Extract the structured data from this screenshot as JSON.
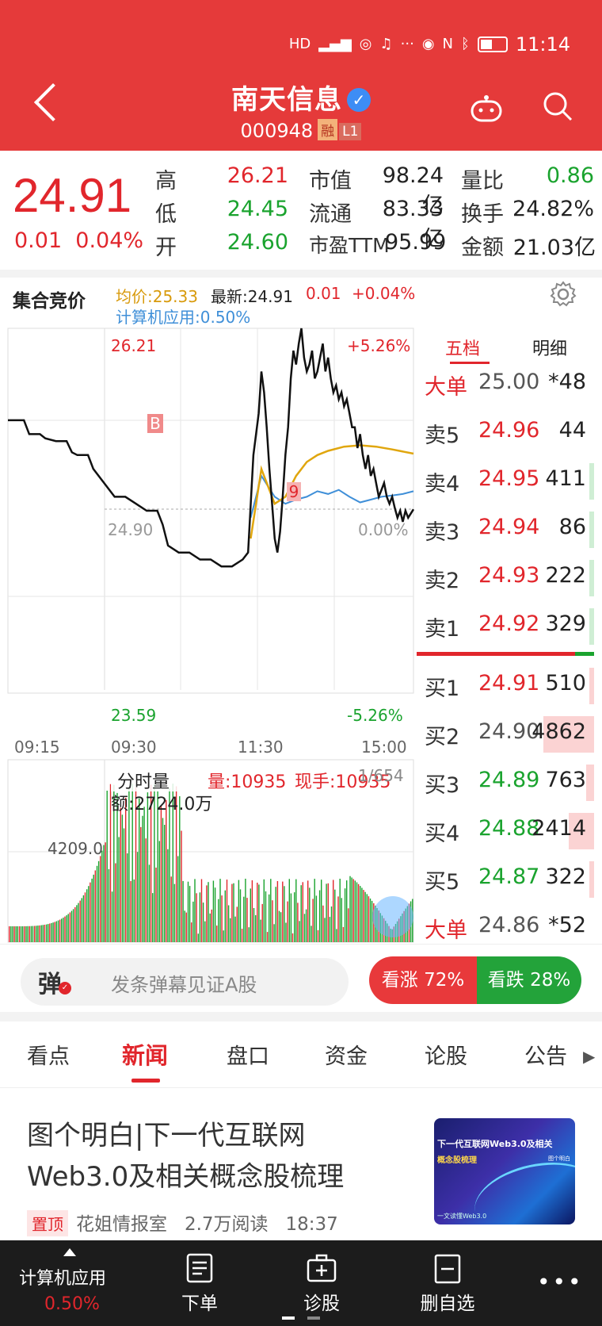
{
  "status_bar": {
    "time": "11:14"
  },
  "header": {
    "stock_name": "南天信息",
    "stock_code": "000948",
    "tag_margin": "融",
    "tag_level": "L1"
  },
  "quote": {
    "price": "24.91",
    "change": "0.01",
    "change_pct": "0.04%",
    "high_label": "高",
    "high": "26.21",
    "low_label": "低",
    "low": "24.45",
    "open_label": "开",
    "open": "24.60",
    "mktcap_label": "市值",
    "mktcap": "98.24亿",
    "float_label": "流通",
    "float": "83.33亿",
    "pe_label": "市盈TTM",
    "pe": "95.99",
    "vol_ratio_label": "量比",
    "vol_ratio": "0.86",
    "turnover_label": "换手",
    "turnover": "24.82%",
    "amount_label": "金额",
    "amount": "21.03亿"
  },
  "chart_head": {
    "mode": "集合竞价",
    "avg_price": "均价:25.33",
    "latest": "最新:24.91",
    "chg": "0.01",
    "chg_pct": "+0.04%",
    "sector": "计算机应用:0.50%"
  },
  "chart_labels": {
    "top_price": "26.21",
    "top_pct": "+5.26%",
    "mid_price": "24.90",
    "mid_pct": "0.00%",
    "bottom_price": "23.59",
    "bottom_pct": "-5.26%",
    "time_0": "09:15",
    "time_1": "09:30",
    "time_2": "11:30",
    "time_3": "15:00",
    "marker_b": "B",
    "marker_9": "9"
  },
  "chart_data": {
    "type": "line",
    "ylim": [
      23.59,
      26.21
    ],
    "series": [],
    "price": [
      [
        0,
        25.55
      ],
      [
        6,
        25.55
      ],
      [
        8,
        25.45
      ],
      [
        12,
        25.45
      ],
      [
        14,
        25.42
      ],
      [
        18,
        25.4
      ],
      [
        22,
        25.4
      ],
      [
        24,
        25.32
      ],
      [
        26,
        25.3
      ],
      [
        30,
        25.3
      ],
      [
        32,
        25.2
      ],
      [
        36,
        25.1
      ],
      [
        40,
        25.0
      ],
      [
        44,
        25.0
      ],
      [
        48,
        24.95
      ],
      [
        52,
        24.9
      ],
      [
        56,
        24.9
      ],
      [
        58,
        24.8
      ],
      [
        60,
        24.65
      ],
      [
        64,
        24.6
      ],
      [
        68,
        24.6
      ],
      [
        72,
        24.55
      ],
      [
        76,
        24.55
      ],
      [
        80,
        24.5
      ],
      [
        84,
        24.5
      ],
      [
        88,
        24.55
      ],
      [
        90,
        24.6
      ],
      [
        92,
        25.3
      ],
      [
        94,
        25.6
      ],
      [
        95,
        25.9
      ],
      [
        96,
        25.75
      ],
      [
        97,
        25.5
      ],
      [
        98,
        25.2
      ],
      [
        99,
        24.95
      ],
      [
        100,
        24.7
      ],
      [
        101,
        24.6
      ],
      [
        102,
        24.75
      ],
      [
        103,
        25.0
      ],
      [
        104,
        25.3
      ],
      [
        105,
        25.5
      ],
      [
        106,
        25.85
      ],
      [
        107,
        26.05
      ],
      [
        108,
        25.95
      ],
      [
        109,
        26.1
      ],
      [
        110,
        26.21
      ],
      [
        111,
        26.0
      ],
      [
        112,
        25.9
      ],
      [
        113,
        25.95
      ],
      [
        114,
        26.05
      ],
      [
        115,
        25.85
      ],
      [
        116,
        25.9
      ],
      [
        117,
        26.0
      ],
      [
        118,
        26.1
      ],
      [
        119,
        25.9
      ],
      [
        120,
        26.0
      ],
      [
        121,
        25.85
      ],
      [
        122,
        25.75
      ],
      [
        123,
        25.8
      ],
      [
        124,
        25.7
      ],
      [
        125,
        25.75
      ],
      [
        126,
        25.65
      ],
      [
        127,
        25.7
      ],
      [
        128,
        25.6
      ],
      [
        129,
        25.5
      ],
      [
        130,
        25.5
      ],
      [
        131,
        25.35
      ],
      [
        132,
        25.45
      ],
      [
        133,
        25.3
      ],
      [
        134,
        25.2
      ],
      [
        135,
        25.3
      ],
      [
        136,
        25.15
      ],
      [
        137,
        25.2
      ],
      [
        138,
        25.1
      ],
      [
        139,
        25.0
      ],
      [
        140,
        25.05
      ],
      [
        141,
        25.1
      ],
      [
        142,
        25.0
      ],
      [
        143,
        24.95
      ],
      [
        144,
        25.0
      ],
      [
        145,
        24.92
      ],
      [
        146,
        24.85
      ],
      [
        147,
        24.9
      ],
      [
        148,
        24.82
      ],
      [
        149,
        24.9
      ],
      [
        150,
        24.85
      ],
      [
        152,
        24.91
      ]
    ],
    "avg": [
      [
        91,
        24.7
      ],
      [
        95,
        25.2
      ],
      [
        100,
        24.95
      ],
      [
        104,
        25.0
      ],
      [
        108,
        25.15
      ],
      [
        112,
        25.25
      ],
      [
        116,
        25.3
      ],
      [
        120,
        25.33
      ],
      [
        126,
        25.36
      ],
      [
        132,
        25.37
      ],
      [
        138,
        25.36
      ],
      [
        144,
        25.34
      ],
      [
        152,
        25.31
      ]
    ],
    "sector": [
      [
        91,
        24.85
      ],
      [
        95,
        25.15
      ],
      [
        100,
        25.0
      ],
      [
        104,
        24.95
      ],
      [
        108,
        24.98
      ],
      [
        112,
        25.0
      ],
      [
        116,
        25.04
      ],
      [
        120,
        25.02
      ],
      [
        124,
        25.05
      ],
      [
        128,
        25.0
      ],
      [
        132,
        24.96
      ],
      [
        136,
        24.98
      ],
      [
        140,
        25.0
      ],
      [
        144,
        25.01
      ],
      [
        148,
        25.02
      ],
      [
        152,
        25.04
      ]
    ]
  },
  "order_book": {
    "tab_active": "五档",
    "tab_other": "明细",
    "asks": [
      {
        "name": "大单",
        "price": "25.00",
        "vol": "*48",
        "price_color": "gray",
        "bar": 0
      },
      {
        "name": "卖5",
        "price": "24.96",
        "vol": "44",
        "price_color": "red",
        "bar": 0
      },
      {
        "name": "卖4",
        "price": "24.95",
        "vol": "411",
        "price_color": "red",
        "bar": 0.08
      },
      {
        "name": "卖3",
        "price": "24.94",
        "vol": "86",
        "price_color": "red",
        "bar": 0.02
      },
      {
        "name": "卖2",
        "price": "24.93",
        "vol": "222",
        "price_color": "red",
        "bar": 0.04
      },
      {
        "name": "卖1",
        "price": "24.92",
        "vol": "329",
        "price_color": "red",
        "bar": 0.06
      }
    ],
    "bids": [
      {
        "name": "买1",
        "price": "24.91",
        "vol": "510",
        "price_color": "red",
        "bar": 0.1
      },
      {
        "name": "买2",
        "price": "24.90",
        "vol": "4862",
        "price_color": "gray",
        "bar": 1.0
      },
      {
        "name": "买3",
        "price": "24.89",
        "vol": "763",
        "price_color": "green",
        "bar": 0.15
      },
      {
        "name": "买4",
        "price": "24.88",
        "vol": "2414",
        "price_color": "green",
        "bar": 0.5
      },
      {
        "name": "买5",
        "price": "24.87",
        "vol": "322",
        "price_color": "green",
        "bar": 0.07
      },
      {
        "name": "大单",
        "price": "24.86",
        "vol": "*52",
        "price_color": "gray",
        "bar": 0
      }
    ]
  },
  "volume": {
    "type": "分时量",
    "qty": "量:10935",
    "now": "现手:10935",
    "amount": "额:2724.0万",
    "level": "4209.0",
    "right_label": "1/654"
  },
  "danmu": {
    "icon": "弹",
    "placeholder": "发条弹幕见证A股",
    "bull": "看涨 72%",
    "bear": "看跌 28%"
  },
  "tabs": [
    "看点",
    "新闻",
    "盘口",
    "资金",
    "论股",
    "公告"
  ],
  "news": {
    "title": "图个明白|下一代互联网Web3.0及相关概念股梳理",
    "pin": "置顶",
    "source": "花姐情报室",
    "reads": "2.7万阅读",
    "time": "18:37",
    "thumb_line1": "下一代互联网Web3.0及相关",
    "thumb_line2": "概念股梳理",
    "thumb_line3": "一文读懂Web3.0",
    "thumb_line4": "图个明白"
  },
  "bottom_bar": {
    "sector": "计算机应用",
    "sector_chg": "0.50%",
    "order": "下单",
    "diagnose": "诊股",
    "remove_fav": "删自选"
  }
}
